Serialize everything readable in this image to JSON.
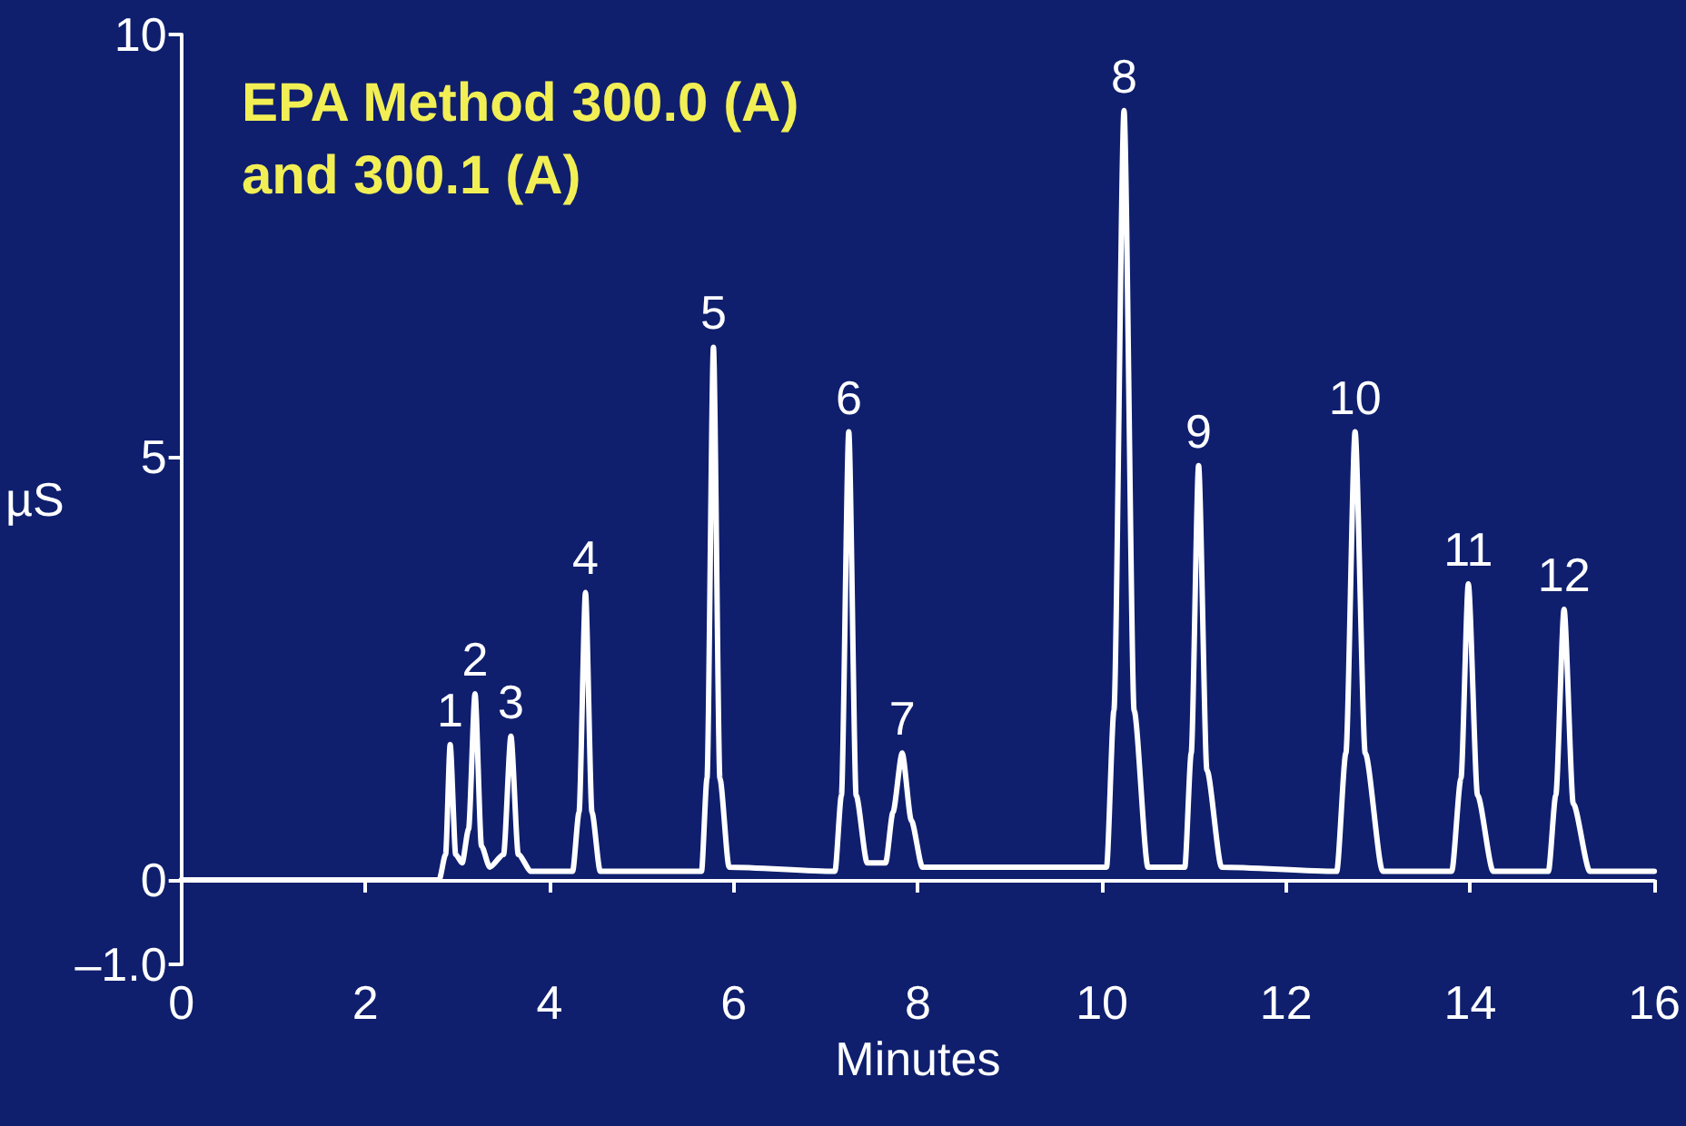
{
  "chart_data": {
    "type": "line",
    "title": "EPA Method 300.0 (A)\nand 300.1 (A)",
    "xlabel": "Minutes",
    "ylabel": "µS",
    "xlim": [
      0,
      16
    ],
    "xticks": [
      0,
      2,
      4,
      6,
      8,
      10,
      12,
      14,
      16
    ],
    "ylim": [
      -1,
      10
    ],
    "yticks": [
      {
        "value": -1,
        "label": "–1.0"
      },
      0,
      5,
      10
    ],
    "marker": "none",
    "line_style": "solid",
    "series": [
      {
        "color": "#ffffff",
        "x": [
          0,
          2.8,
          2.87,
          2.92,
          2.98,
          3.05,
          3.12,
          3.19,
          3.26,
          3.35,
          3.5,
          3.58,
          3.66,
          3.8,
          4.25,
          4.32,
          4.39,
          4.46,
          4.55,
          5.65,
          5.71,
          5.78,
          5.85,
          5.95,
          7.1,
          7.17,
          7.25,
          7.33,
          7.45,
          7.65,
          7.73,
          7.83,
          7.93,
          8.05,
          10.05,
          10.13,
          10.24,
          10.35,
          10.5,
          10.9,
          10.97,
          11.05,
          11.14,
          11.3,
          12.55,
          12.65,
          12.75,
          12.86,
          13.05,
          13.8,
          13.9,
          13.98,
          14.08,
          14.25,
          14.85,
          14.93,
          15.02,
          15.12,
          15.3,
          16
        ],
        "values": [
          0,
          0,
          0.3,
          1.6,
          0.3,
          0.2,
          0.6,
          2.2,
          0.4,
          0.15,
          0.3,
          1.7,
          0.3,
          0.1,
          0.1,
          0.8,
          3.4,
          0.8,
          0.1,
          0.1,
          1.2,
          6.3,
          1.2,
          0.15,
          0.1,
          1.0,
          5.3,
          1.0,
          0.2,
          0.2,
          0.8,
          1.5,
          0.7,
          0.15,
          0.15,
          2.0,
          9.1,
          2.0,
          0.15,
          0.15,
          1.5,
          4.9,
          1.3,
          0.15,
          0.1,
          1.5,
          5.3,
          1.5,
          0.1,
          0.1,
          1.2,
          3.5,
          1.0,
          0.1,
          0.1,
          1.0,
          3.2,
          0.9,
          0.1,
          0.1
        ]
      }
    ],
    "annotations": [
      {
        "text": "1",
        "x": 2.92,
        "y": 1.6
      },
      {
        "text": "2",
        "x": 3.19,
        "y": 2.2
      },
      {
        "text": "3",
        "x": 3.58,
        "y": 1.7
      },
      {
        "text": "4",
        "x": 4.39,
        "y": 3.4
      },
      {
        "text": "5",
        "x": 5.78,
        "y": 6.3
      },
      {
        "text": "6",
        "x": 7.25,
        "y": 5.3
      },
      {
        "text": "7",
        "x": 7.83,
        "y": 1.5
      },
      {
        "text": "8",
        "x": 10.24,
        "y": 9.1
      },
      {
        "text": "9",
        "x": 11.05,
        "y": 4.9
      },
      {
        "text": "10",
        "x": 12.75,
        "y": 5.3
      },
      {
        "text": "11",
        "x": 13.98,
        "y": 3.5
      },
      {
        "text": "12",
        "x": 15.02,
        "y": 3.2
      }
    ]
  }
}
